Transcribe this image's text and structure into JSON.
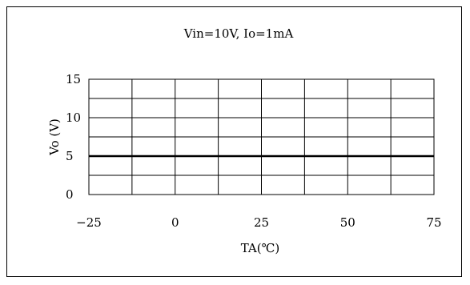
{
  "chart_data": {
    "type": "line",
    "title": "Vin=10V, Io=1mA",
    "xlabel": "TA(℃)",
    "ylabel": "Vo (V)",
    "xlim": [
      -25,
      75
    ],
    "ylim": [
      0,
      15
    ],
    "x_ticks": [
      -25,
      0,
      25,
      50,
      75
    ],
    "x_tick_labels": [
      "−25",
      "0",
      "25",
      "50",
      "75"
    ],
    "y_ticks": [
      0,
      5,
      10,
      15
    ],
    "y_tick_labels": [
      "0",
      "5",
      "10",
      "15"
    ],
    "grid": true,
    "series": [
      {
        "x": [
          -25,
          75
        ],
        "y": [
          5,
          5
        ]
      }
    ]
  }
}
